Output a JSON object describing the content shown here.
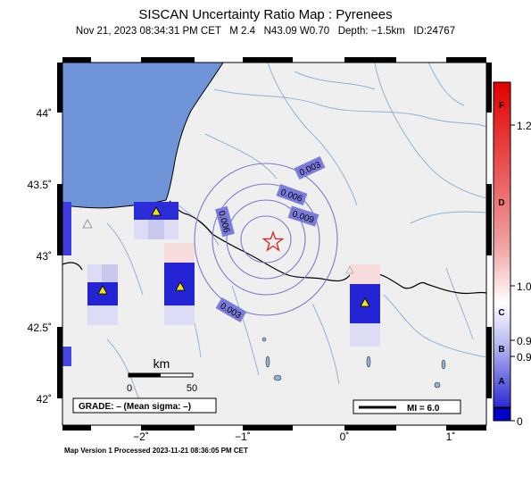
{
  "header": {
    "title": "SISCAN Uncertainty Ratio Map : Pyrenees",
    "subtitle": "Nov 21, 2023 08:34:31 PM CET   M 2.4   N43.09 W0.70   Depth: −1.5km   ID:24767"
  },
  "axes": {
    "lat_ticks": [
      "44˚",
      "43.5˚",
      "43˚",
      "42.5˚",
      "42˚"
    ],
    "lon_ticks": [
      "−2˚",
      "−1˚",
      "0˚",
      "1˚"
    ]
  },
  "scale_bar": {
    "unit": "km",
    "start": "0",
    "end": "50"
  },
  "grade_box": {
    "text": "GRADE: – (Mean sigma: –)"
  },
  "mi_box": {
    "text": "MI = 6.0"
  },
  "contour_labels": [
    "0.003",
    "0.006",
    "0.009",
    "0.006",
    "0.003"
  ],
  "colorbar": {
    "letters": [
      "F",
      "D",
      "C",
      "B",
      "A"
    ],
    "values": [
      "1.2",
      "1.0",
      "0.9",
      "0.9",
      "0"
    ]
  },
  "footer": {
    "text": "Map Version 1 Processed 2023-11-21 08:36:05 PM CET"
  },
  "colors": {
    "sea": "#6f95d8",
    "land": "#efefef",
    "epicenter": "#e02020",
    "station": "#f5e800"
  },
  "icons": {
    "epicenter": "star-icon",
    "station": "triangle-icon"
  }
}
